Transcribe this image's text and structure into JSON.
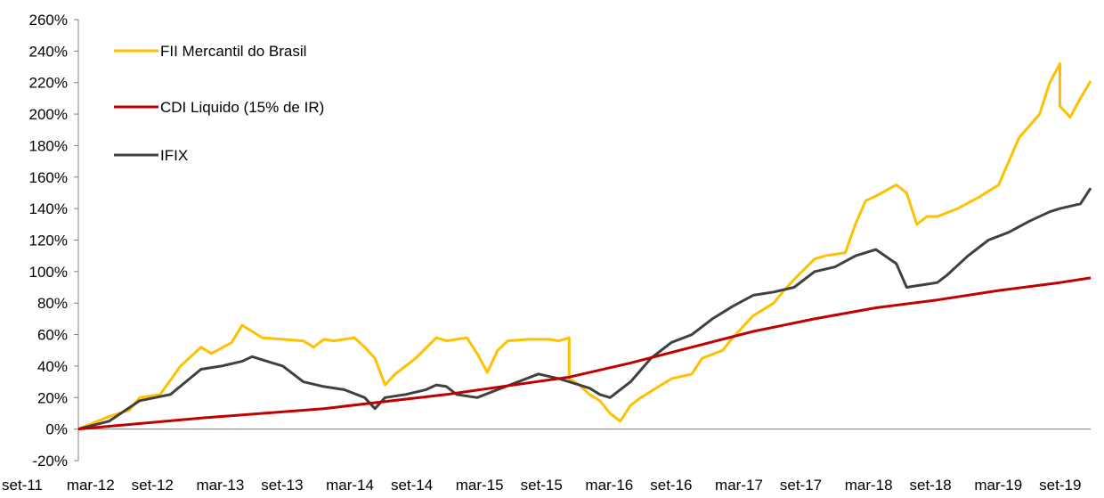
{
  "chart_data": {
    "type": "line",
    "title": "",
    "xlabel": "",
    "ylabel": "",
    "ylim": [
      -20,
      260
    ],
    "y_ticks": [
      -20,
      0,
      20,
      40,
      60,
      80,
      100,
      120,
      140,
      160,
      180,
      200,
      220,
      240,
      260
    ],
    "y_tick_suffix": "%",
    "x_tick_labels": [
      "set-11",
      "mar-12",
      "set-12",
      "mar-13",
      "set-13",
      "mar-14",
      "set-14",
      "mar-15",
      "set-15",
      "mar-16",
      "set-16",
      "mar-17",
      "set-17",
      "mar-18",
      "set-18",
      "mar-19",
      "set-19"
    ],
    "grid": false,
    "legend_position": "top-left",
    "series": [
      {
        "name": "FII Mercantil do Brasil",
        "color": "#FFC000",
        "points": [
          [
            "set-11",
            0
          ],
          [
            "dez-11",
            8
          ],
          [
            "fev-12",
            12
          ],
          [
            "mar-12",
            20
          ],
          [
            "mai-12",
            22
          ],
          [
            "jul-12",
            40
          ],
          [
            "set-12",
            52
          ],
          [
            "out-12",
            48
          ],
          [
            "dez-12",
            55
          ],
          [
            "jan-13",
            66
          ],
          [
            "fev-13",
            62
          ],
          [
            "mar-13",
            58
          ],
          [
            "mai-13",
            57
          ],
          [
            "jul-13",
            56
          ],
          [
            "ago-13",
            52
          ],
          [
            "set-13",
            57
          ],
          [
            "out-13",
            56
          ],
          [
            "dez-13",
            58
          ],
          [
            "jan-14",
            52
          ],
          [
            "fev-14",
            45
          ],
          [
            "mar-14",
            28
          ],
          [
            "abr-14",
            35
          ],
          [
            "jun-14",
            45
          ],
          [
            "ago-14",
            58
          ],
          [
            "set-14",
            56
          ],
          [
            "nov-14",
            58
          ],
          [
            "dez-14",
            48
          ],
          [
            "jan-15",
            36
          ],
          [
            "fev-15",
            50
          ],
          [
            "mar-15",
            56
          ],
          [
            "mai-15",
            57
          ],
          [
            "jul-15",
            57
          ],
          [
            "ago-15",
            56
          ],
          [
            "set-15",
            58
          ],
          [
            "set-15",
            32
          ],
          [
            "out-15",
            28
          ],
          [
            "nov-15",
            22
          ],
          [
            "dez-15",
            18
          ],
          [
            "jan-16",
            10
          ],
          [
            "fev-16",
            5
          ],
          [
            "mar-16",
            15
          ],
          [
            "abr-16",
            20
          ],
          [
            "jun-16",
            28
          ],
          [
            "jul-16",
            32
          ],
          [
            "set-16",
            35
          ],
          [
            "out-16",
            45
          ],
          [
            "dez-16",
            50
          ],
          [
            "jan-17",
            58
          ],
          [
            "mar-17",
            72
          ],
          [
            "mai-17",
            80
          ],
          [
            "jun-17",
            88
          ],
          [
            "jul-17",
            95
          ],
          [
            "set-17",
            108
          ],
          [
            "out-17",
            110
          ],
          [
            "dez-17",
            112
          ],
          [
            "jan-18",
            130
          ],
          [
            "fev-18",
            145
          ],
          [
            "mar-18",
            148
          ],
          [
            "mai-18",
            155
          ],
          [
            "jun-18",
            150
          ],
          [
            "jul-18",
            130
          ],
          [
            "ago-18",
            135
          ],
          [
            "set-18",
            135
          ],
          [
            "nov-18",
            140
          ],
          [
            "jan-19",
            147
          ],
          [
            "mar-19",
            155
          ],
          [
            "mai-19",
            185
          ],
          [
            "jul-19",
            200
          ],
          [
            "ago-19",
            220
          ],
          [
            "set-19",
            232
          ],
          [
            "set-19",
            205
          ],
          [
            "out-19",
            198
          ],
          [
            "nov-19",
            210
          ],
          [
            "dez-19",
            221
          ]
        ]
      },
      {
        "name": "CDI Liquido (15% de IR)",
        "color": "#C00000",
        "points": [
          [
            "set-11",
            0
          ],
          [
            "set-12",
            7
          ],
          [
            "set-13",
            13
          ],
          [
            "set-14",
            22
          ],
          [
            "set-15",
            33
          ],
          [
            "mar-16",
            42
          ],
          [
            "set-16",
            52
          ],
          [
            "mar-17",
            62
          ],
          [
            "set-17",
            70
          ],
          [
            "mar-18",
            77
          ],
          [
            "set-18",
            82
          ],
          [
            "mar-19",
            88
          ],
          [
            "set-19",
            93
          ],
          [
            "dez-19",
            96
          ]
        ]
      },
      {
        "name": "IFIX",
        "color": "#404040",
        "points": [
          [
            "set-11",
            0
          ],
          [
            "dez-11",
            5
          ],
          [
            "mar-12",
            18
          ],
          [
            "jun-12",
            22
          ],
          [
            "set-12",
            38
          ],
          [
            "nov-12",
            40
          ],
          [
            "jan-13",
            43
          ],
          [
            "fev-13",
            46
          ],
          [
            "mar-13",
            44
          ],
          [
            "mai-13",
            40
          ],
          [
            "jul-13",
            30
          ],
          [
            "set-13",
            27
          ],
          [
            "nov-13",
            25
          ],
          [
            "jan-14",
            20
          ],
          [
            "fev-14",
            13
          ],
          [
            "mar-14",
            20
          ],
          [
            "mai-14",
            22
          ],
          [
            "jul-14",
            25
          ],
          [
            "ago-14",
            28
          ],
          [
            "set-14",
            27
          ],
          [
            "out-14",
            22
          ],
          [
            "dez-14",
            20
          ],
          [
            "fev-15",
            25
          ],
          [
            "abr-15",
            30
          ],
          [
            "jun-15",
            35
          ],
          [
            "ago-15",
            32
          ],
          [
            "set-15",
            30
          ],
          [
            "nov-15",
            26
          ],
          [
            "dez-15",
            22
          ],
          [
            "jan-16",
            20
          ],
          [
            "mar-16",
            30
          ],
          [
            "mai-16",
            45
          ],
          [
            "jul-16",
            55
          ],
          [
            "set-16",
            60
          ],
          [
            "nov-16",
            70
          ],
          [
            "jan-17",
            78
          ],
          [
            "mar-17",
            85
          ],
          [
            "mai-17",
            87
          ],
          [
            "jul-17",
            90
          ],
          [
            "set-17",
            100
          ],
          [
            "nov-17",
            103
          ],
          [
            "jan-18",
            110
          ],
          [
            "mar-18",
            114
          ],
          [
            "mai-18",
            105
          ],
          [
            "jun-18",
            90
          ],
          [
            "ago-18",
            92
          ],
          [
            "set-18",
            93
          ],
          [
            "out-18",
            98
          ],
          [
            "dez-18",
            110
          ],
          [
            "fev-19",
            120
          ],
          [
            "abr-19",
            125
          ],
          [
            "jun-19",
            132
          ],
          [
            "ago-19",
            138
          ],
          [
            "set-19",
            140
          ],
          [
            "nov-19",
            143
          ],
          [
            "dez-19",
            153
          ]
        ]
      }
    ]
  }
}
